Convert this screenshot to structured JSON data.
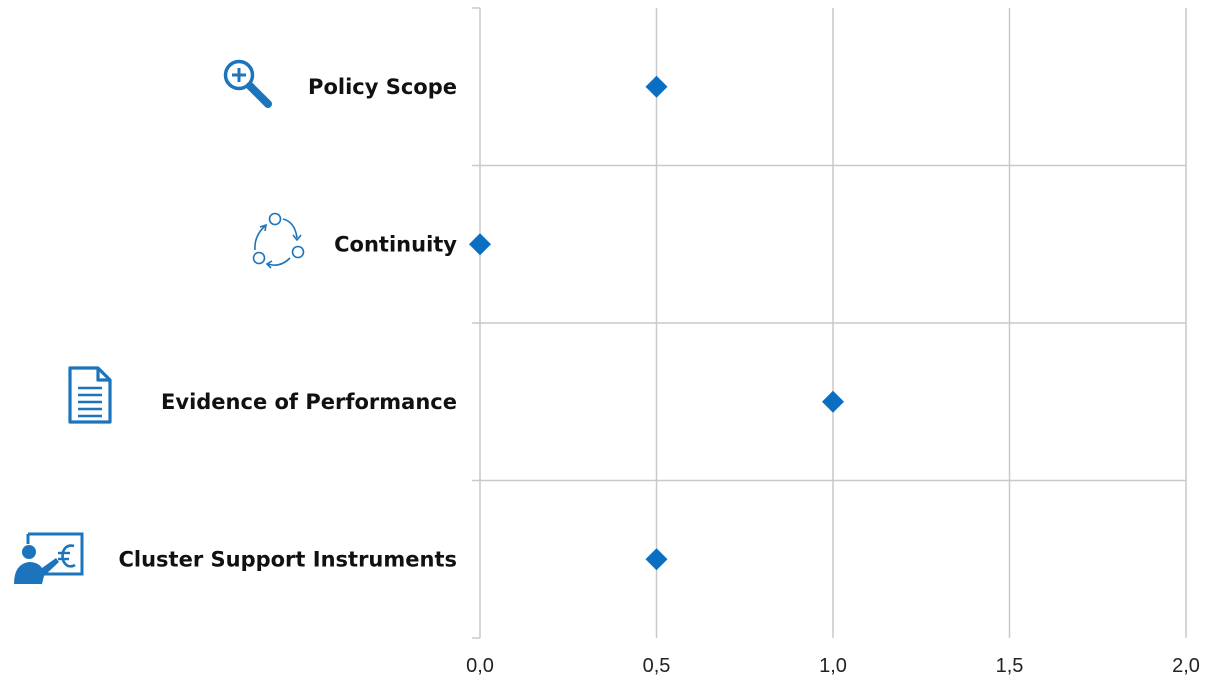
{
  "chart_data": {
    "type": "scatter",
    "title": "",
    "xlabel": "",
    "ylabel": "",
    "xlim": [
      0,
      2
    ],
    "x_ticks": [
      "0,0",
      "0,5",
      "1,0",
      "1,5",
      "2,0"
    ],
    "grid": "vertical",
    "categories": [
      "Policy Scope",
      "Continuity",
      "Evidence of Performance",
      "Cluster Support Instruments"
    ],
    "values": [
      0.5,
      0.0,
      1.0,
      0.5
    ],
    "marker": "diamond",
    "colors": {
      "marker": "#0A6FC2",
      "icon": "#1C75BC"
    },
    "icons": [
      "magnifier-plus-icon",
      "cycle-arrows-icon",
      "document-icon",
      "presenter-euro-icon"
    ]
  }
}
